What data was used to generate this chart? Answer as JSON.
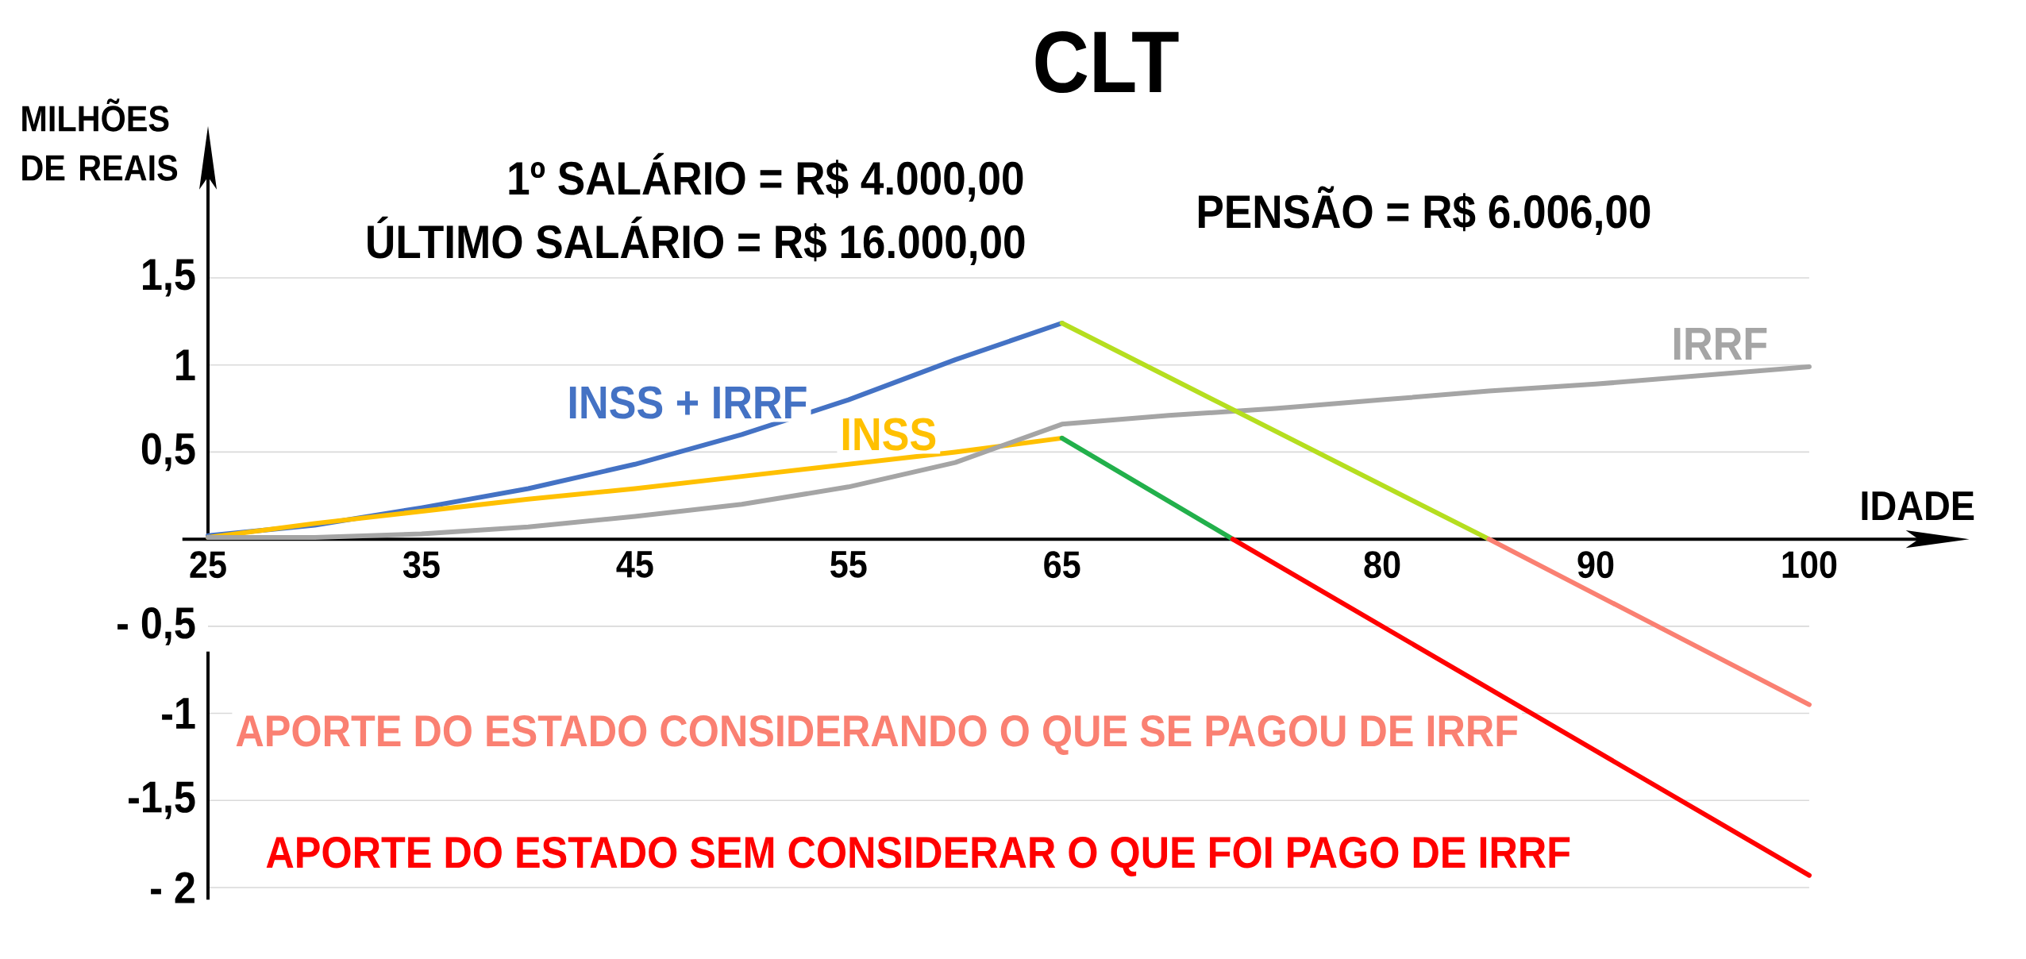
{
  "chart_data": {
    "type": "line",
    "title": "CLT",
    "xlabel": "IDADE",
    "ylabel": "MILHÕES DE REAIS",
    "annotations": [
      "1º SALÁRIO = R$ 4.000,00",
      "ÚLTIMO SALÁRIO = R$ 16.000,00",
      "PENSÃO = R$ 6.006,00"
    ],
    "xlim": [
      25,
      100
    ],
    "xticks": [
      25,
      35,
      45,
      55,
      65,
      80,
      90,
      100
    ],
    "ylim": [
      -2,
      1.5
    ],
    "yticks": [
      {
        "value": 1.5,
        "label": "1,5"
      },
      {
        "value": 1,
        "label": "1"
      },
      {
        "value": 0.5,
        "label": "0,5"
      },
      {
        "value": -0.5,
        "label": "- 0,5"
      },
      {
        "value": -1,
        "label": "-1"
      },
      {
        "value": -1.5,
        "label": "-1,5"
      },
      {
        "value": -2,
        "label": "- 2"
      }
    ],
    "grid": "y",
    "series": [
      {
        "name": "INSS + IRRF",
        "color": "#4472c4",
        "x": [
          25,
          30,
          35,
          40,
          45,
          50,
          55,
          60,
          65
        ],
        "values": [
          0.02,
          0.08,
          0.18,
          0.29,
          0.43,
          0.6,
          0.8,
          1.03,
          1.24
        ]
      },
      {
        "name": "INSS",
        "color": "#ffc000",
        "x": [
          25,
          30,
          35,
          40,
          45,
          50,
          55,
          60,
          65
        ],
        "values": [
          0.01,
          0.09,
          0.16,
          0.23,
          0.29,
          0.36,
          0.43,
          0.5,
          0.58
        ]
      },
      {
        "name": "IRRF",
        "color": "#a5a5a5",
        "x": [
          25,
          30,
          35,
          40,
          45,
          50,
          55,
          60,
          65,
          70,
          75,
          80,
          85,
          90,
          95,
          100
        ],
        "values": [
          0.01,
          0.01,
          0.03,
          0.07,
          0.13,
          0.2,
          0.3,
          0.44,
          0.66,
          0.71,
          0.75,
          0.8,
          0.85,
          0.89,
          0.94,
          0.99
        ]
      },
      {
        "color": "#b5de1f",
        "x": [
          65,
          85
        ],
        "values": [
          1.24,
          0
        ]
      },
      {
        "name": "APORTE DO ESTADO CONSIDERANDO O QUE SE PAGOU DE IRRF",
        "color": "#fa8072",
        "x": [
          85,
          100
        ],
        "values": [
          0,
          -0.95
        ]
      },
      {
        "color": "#22b04b",
        "x": [
          65,
          73
        ],
        "values": [
          0.58,
          0
        ]
      },
      {
        "name": "APORTE DO ESTADO SEM CONSIDERAR O QUE FOI PAGO DE IRRF",
        "color": "#ff0000",
        "x": [
          73,
          100
        ],
        "values": [
          0,
          -1.93
        ]
      }
    ]
  }
}
